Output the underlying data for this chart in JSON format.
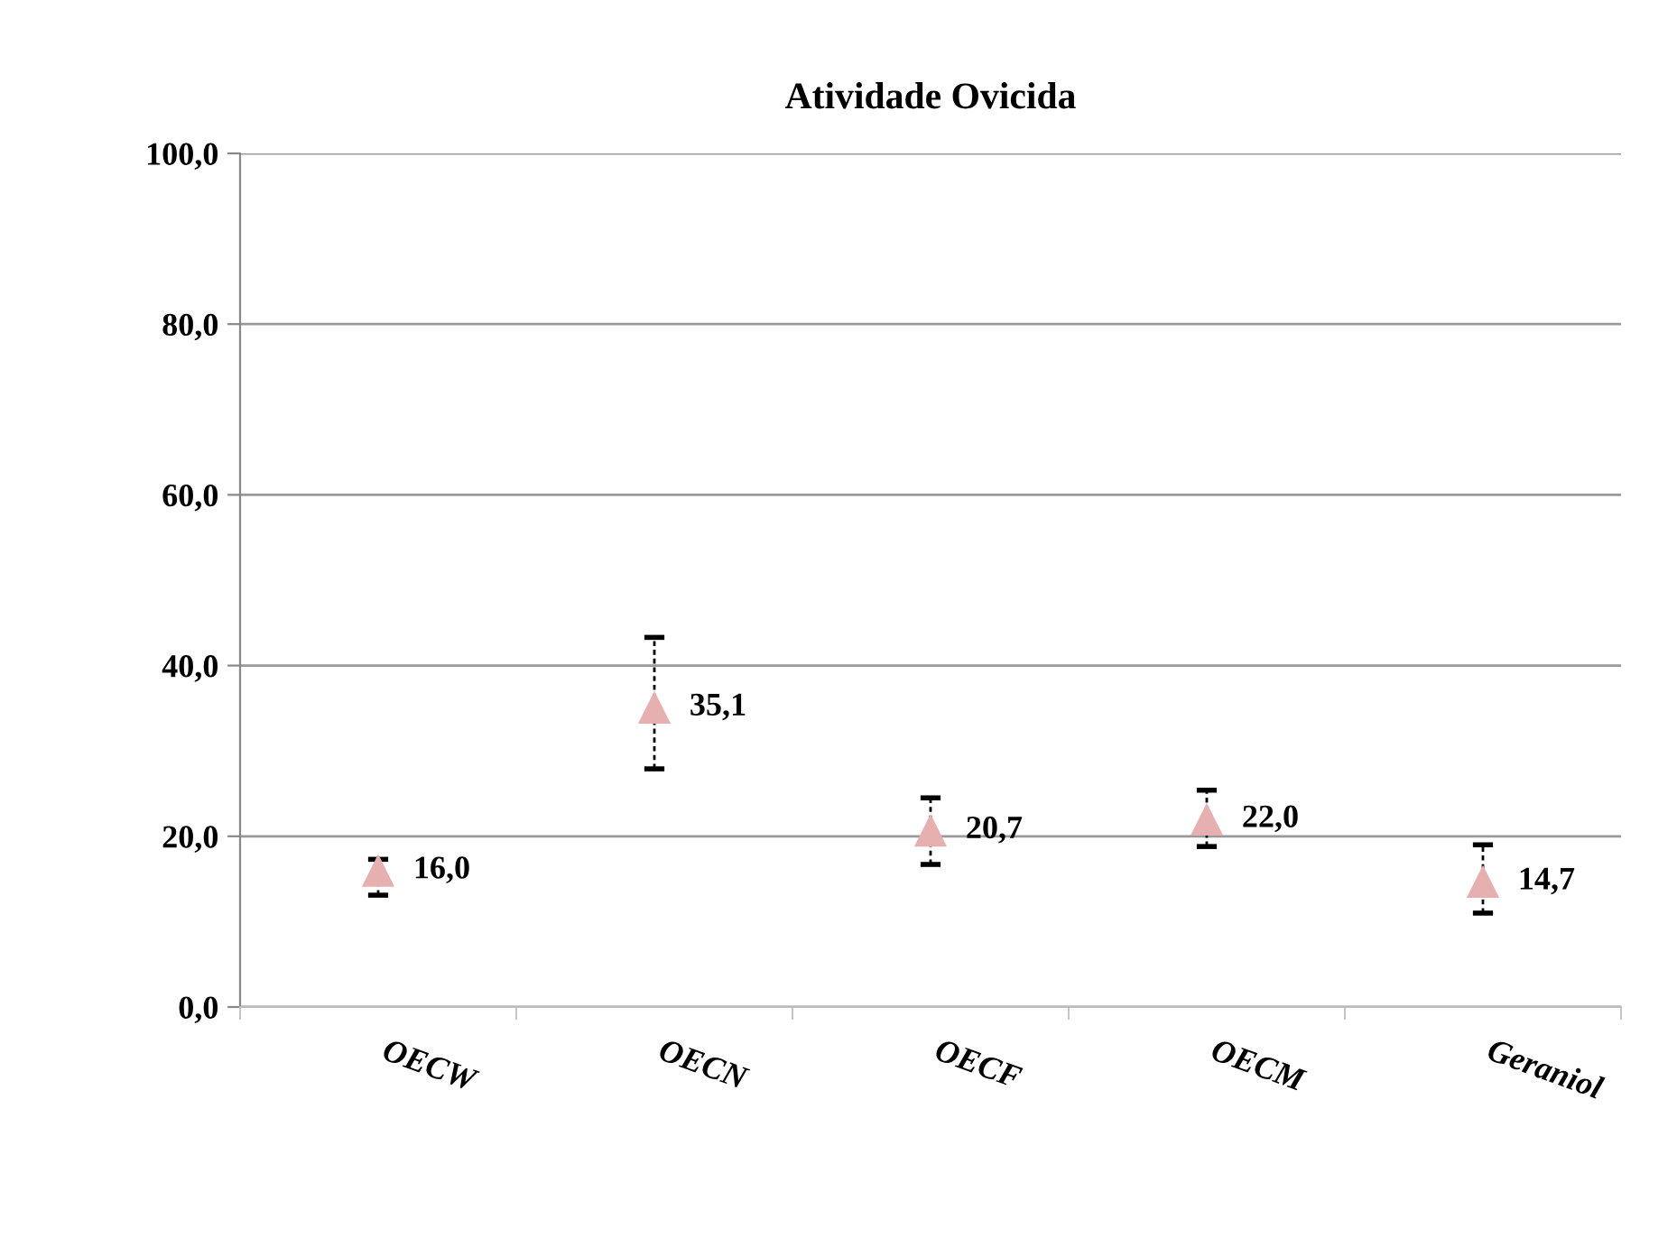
{
  "chart_data": {
    "type": "scatter",
    "title": "Atividade Ovicida",
    "categories": [
      "OECW",
      "OECN",
      "OECF",
      "OECM",
      "Geraniol"
    ],
    "values": [
      16.0,
      35.1,
      20.7,
      22.0,
      14.7
    ],
    "errors": [
      [
        13.1,
        17.3
      ],
      [
        27.9,
        43.3
      ],
      [
        16.7,
        24.5
      ],
      [
        18.8,
        25.4
      ],
      [
        11.0,
        19.0
      ]
    ],
    "value_labels": [
      "16,0",
      "35,1",
      "20,7",
      "22,0",
      "14,7"
    ],
    "color": "#e6b0b0",
    "marker": "triangle",
    "ylim": [
      0,
      100
    ],
    "yticks": [
      {
        "value": 0,
        "label": "0,0"
      },
      {
        "value": 20,
        "label": "20,0"
      },
      {
        "value": 40,
        "label": "40,0"
      },
      {
        "value": 60,
        "label": "60,0"
      },
      {
        "value": 80,
        "label": "80,0"
      },
      {
        "value": 100,
        "label": "100,0"
      }
    ],
    "grid": "y",
    "legend": false
  }
}
